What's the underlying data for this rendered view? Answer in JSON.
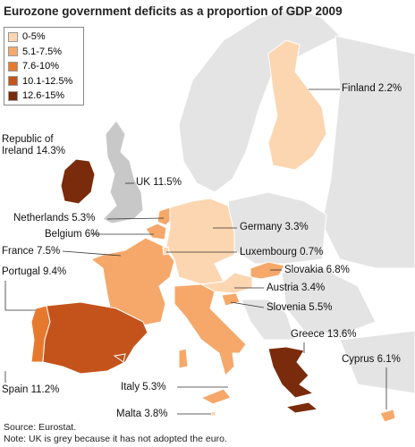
{
  "header": {
    "title": "Eurozone government deficits as a proportion of GDP 2009"
  },
  "legend": {
    "items": [
      {
        "label": "0-5%",
        "color": "#fcd6b0"
      },
      {
        "label": "5.1-7.5%",
        "color": "#f5a86a"
      },
      {
        "label": "7.6-10%",
        "color": "#e7792f"
      },
      {
        "label": "10.1-12.5%",
        "color": "#c4531b"
      },
      {
        "label": "12.6-15%",
        "color": "#7a2b0b"
      }
    ]
  },
  "countries": [
    {
      "label": "Finland 2.2%",
      "color": "#fcd6b0"
    },
    {
      "label": "Republic of Ireland 14.3%",
      "color": "#7a2b0b"
    },
    {
      "label": "UK 11.5%",
      "color": "#c8c8c8"
    },
    {
      "label": "Netherlands 5.3%",
      "color": "#f5a86a"
    },
    {
      "label": "Belgium 6%",
      "color": "#f5a86a"
    },
    {
      "label": "Germany 3.3%",
      "color": "#fcd6b0"
    },
    {
      "label": "France 7.5%",
      "color": "#f5a86a"
    },
    {
      "label": "Luxembourg 0.7%",
      "color": "#fcd6b0"
    },
    {
      "label": "Slovakia 6.8%",
      "color": "#f5a86a"
    },
    {
      "label": "Portugal 9.4%",
      "color": "#e7792f"
    },
    {
      "label": "Austria 3.4%",
      "color": "#fcd6b0"
    },
    {
      "label": "Slovenia 5.5%",
      "color": "#f5a86a"
    },
    {
      "label": "Greece 13.6%",
      "color": "#7a2b0b"
    },
    {
      "label": "Cyprus 6.1%",
      "color": "#f5a86a"
    },
    {
      "label": "Spain 11.2%",
      "color": "#c4531b"
    },
    {
      "label": "Italy 5.3%",
      "color": "#f5a86a"
    },
    {
      "label": "Malta 3.8%",
      "color": "#fcd6b0"
    }
  ],
  "footer": {
    "source": "Source: Eurostat.",
    "note": "Note: UK is grey because it has not adopted the euro."
  }
}
